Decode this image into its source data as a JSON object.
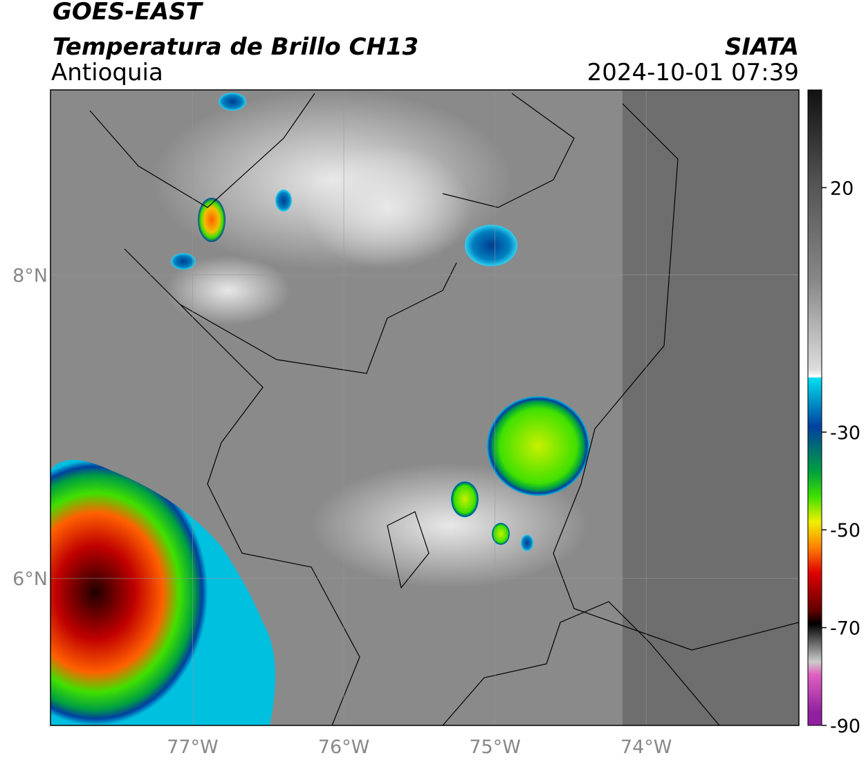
{
  "header": {
    "title": "GOES-EAST",
    "subtitle": "Temperatura de Brillo CH13",
    "region": "Antioquia",
    "source": "SIATA",
    "datetime": "2024-10-01 07:39"
  },
  "map": {
    "xlim": [
      -77.94,
      -72.99
    ],
    "ylim": [
      5.03,
      9.22
    ],
    "xticks": [
      {
        "value": -77,
        "label": "77°W"
      },
      {
        "value": -76,
        "label": "76°W"
      },
      {
        "value": -75,
        "label": "75°W"
      },
      {
        "value": -74,
        "label": "74°W"
      }
    ],
    "yticks": [
      {
        "value": 6,
        "label": "6°N"
      },
      {
        "value": 8,
        "label": "8°N"
      }
    ]
  },
  "colorbar": {
    "lim": [
      -90,
      40
    ],
    "ticks": [
      20,
      -30,
      -50,
      -70,
      -90
    ]
  }
}
